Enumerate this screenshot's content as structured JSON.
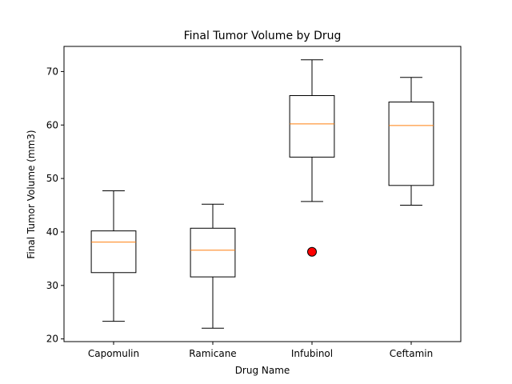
{
  "chart_data": {
    "type": "box",
    "title": "Final Tumor Volume by Drug",
    "xlabel": "Drug Name",
    "ylabel": "Final Tumor Volume (mm3)",
    "ylim": [
      19.5,
      74.7
    ],
    "yticks": [
      20,
      30,
      40,
      50,
      60,
      70
    ],
    "categories": [
      "Capomulin",
      "Ramicane",
      "Infubinol",
      "Ceftamin"
    ],
    "boxes": [
      {
        "name": "Capomulin",
        "whisker_low": 23.3,
        "q1": 32.4,
        "median": 38.1,
        "q3": 40.2,
        "whisker_high": 47.7,
        "outliers": []
      },
      {
        "name": "Ramicane",
        "whisker_low": 22.0,
        "q1": 31.6,
        "median": 36.6,
        "q3": 40.7,
        "whisker_high": 45.2,
        "outliers": []
      },
      {
        "name": "Infubinol",
        "whisker_low": 45.7,
        "q1": 54.0,
        "median": 60.2,
        "q3": 65.5,
        "whisker_high": 72.2,
        "outliers": [
          36.3
        ]
      },
      {
        "name": "Ceftamin",
        "whisker_low": 45.0,
        "q1": 48.7,
        "median": 59.9,
        "q3": 64.3,
        "whisker_high": 68.9,
        "outliers": []
      }
    ],
    "colors": {
      "box": "#000000",
      "median": "#ff7f0e",
      "outlier_fill": "#ff0000",
      "outlier_edge": "#000000"
    },
    "grid": false,
    "legend": "none"
  }
}
